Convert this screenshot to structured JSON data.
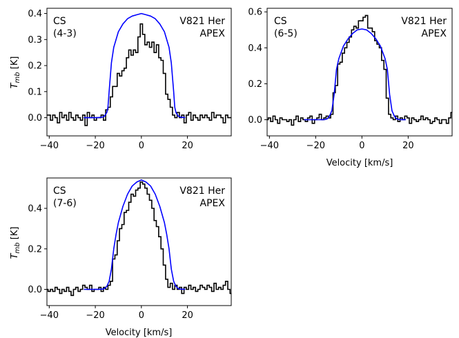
{
  "figure": {
    "xlabel": "Velocity [km/s]",
    "ylabel_main": "T",
    "ylabel_sub": "mb",
    "ylabel_unit": " [K]"
  },
  "colors": {
    "observed": "#000000",
    "model": "#0000ff"
  },
  "chart_data": [
    {
      "type": "line",
      "molecule": "CS",
      "transition": "(4-3)",
      "source": "V821 Her",
      "telescope": "APEX",
      "xlim": [
        -41,
        39
      ],
      "ylim": [
        -0.07,
        0.42
      ],
      "xticks": [
        -40,
        -20,
        0,
        20
      ],
      "yticks": [
        0.0,
        0.1,
        0.2,
        0.3,
        0.4
      ],
      "ytick_labels": [
        "0.0",
        "0.1",
        "0.2",
        "0.3",
        "0.4"
      ],
      "xlabel": "",
      "ylabel": "Tmb [K]",
      "series": [
        {
          "style": "steps",
          "x": [
            -41,
            -40,
            -39,
            -38,
            -37,
            -36,
            -35,
            -34,
            -33,
            -32,
            -31,
            -30,
            -29,
            -28,
            -27,
            -26,
            -25,
            -24,
            -23,
            -22,
            -21,
            -20,
            -19,
            -18,
            -17,
            -16,
            -15,
            -14,
            -13,
            -12,
            -11,
            -10,
            -9,
            -8,
            -7,
            -6,
            -5,
            -4,
            -3,
            -2,
            -1,
            0,
            1,
            2,
            3,
            4,
            5,
            6,
            7,
            8,
            9,
            10,
            11,
            12,
            13,
            14,
            15,
            16,
            17,
            18,
            19,
            20,
            21,
            22,
            23,
            24,
            25,
            26,
            27,
            28,
            29,
            30,
            31,
            32,
            33,
            34,
            35,
            36,
            37,
            38,
            39
          ],
          "y": [
            0.01,
            0.01,
            -0.01,
            0.01,
            0.0,
            -0.02,
            0.02,
            0.0,
            0.01,
            -0.01,
            0.02,
            0.0,
            -0.01,
            0.01,
            0.0,
            -0.01,
            0.01,
            -0.03,
            0.02,
            0.0,
            0.01,
            -0.01,
            0.0,
            0.0,
            0.01,
            -0.01,
            0.03,
            0.04,
            0.08,
            0.12,
            0.12,
            0.17,
            0.16,
            0.18,
            0.19,
            0.23,
            0.26,
            0.24,
            0.26,
            0.25,
            0.31,
            0.36,
            0.32,
            0.28,
            0.29,
            0.27,
            0.29,
            0.25,
            0.28,
            0.23,
            0.22,
            0.17,
            0.09,
            0.07,
            0.04,
            0.01,
            0.0,
            0.02,
            0.0,
            0.01,
            -0.02,
            0.01,
            0.02,
            -0.01,
            0.01,
            0.0,
            -0.01,
            0.01,
            0.0,
            0.01,
            0.0,
            -0.01,
            0.02,
            0.0,
            0.01,
            0.01,
            0.0,
            -0.02,
            0.01,
            0.0,
            0.0
          ]
        },
        {
          "style": "model",
          "x": [
            -25,
            -19,
            -17,
            -16,
            -15,
            -14.5,
            -14,
            -13,
            -12,
            -10,
            -8,
            -6,
            -4,
            -2,
            0,
            2,
            4,
            6,
            8,
            10,
            12,
            13,
            14,
            14.5,
            15,
            16,
            17,
            19
          ],
          "y": [
            0.0,
            0.0,
            0.002,
            0.006,
            0.02,
            0.04,
            0.1,
            0.21,
            0.27,
            0.33,
            0.36,
            0.38,
            0.39,
            0.395,
            0.4,
            0.395,
            0.39,
            0.38,
            0.36,
            0.33,
            0.27,
            0.21,
            0.1,
            0.04,
            0.02,
            0.006,
            0.002,
            0.0
          ]
        }
      ]
    },
    {
      "type": "line",
      "molecule": "CS",
      "transition": "(6-5)",
      "source": "V821 Her",
      "telescope": "APEX",
      "xlim": [
        -41,
        39
      ],
      "ylim": [
        -0.09,
        0.62
      ],
      "xticks": [
        -40,
        -20,
        0,
        20
      ],
      "yticks": [
        0.0,
        0.2,
        0.4,
        0.6
      ],
      "ytick_labels": [
        "0.0",
        "0.2",
        "0.4",
        "0.6"
      ],
      "xlabel": "Velocity [km/s]",
      "ylabel": "",
      "series": [
        {
          "style": "steps",
          "x": [
            -41,
            -40,
            -39,
            -38,
            -37,
            -36,
            -35,
            -34,
            -33,
            -32,
            -31,
            -30,
            -29,
            -28,
            -27,
            -26,
            -25,
            -24,
            -23,
            -22,
            -21,
            -20,
            -19,
            -18,
            -17,
            -16,
            -15,
            -14,
            -13,
            -12,
            -11,
            -10,
            -9,
            -8,
            -7,
            -6,
            -5,
            -4,
            -3,
            -2,
            -1,
            0,
            1,
            2,
            3,
            4,
            5,
            6,
            7,
            8,
            9,
            10,
            11,
            12,
            13,
            14,
            15,
            16,
            17,
            18,
            19,
            20,
            21,
            22,
            23,
            24,
            25,
            26,
            27,
            28,
            29,
            30,
            31,
            32,
            33,
            34,
            35,
            36,
            37,
            38,
            39
          ],
          "y": [
            0.0,
            0.01,
            -0.01,
            0.02,
            0.0,
            -0.02,
            0.01,
            0.0,
            0.0,
            -0.01,
            0.0,
            -0.03,
            0.0,
            0.02,
            -0.01,
            0.01,
            0.0,
            -0.01,
            0.01,
            0.02,
            -0.02,
            0.0,
            0.01,
            0.03,
            0.0,
            0.01,
            0.02,
            0.01,
            0.03,
            0.15,
            0.19,
            0.31,
            0.32,
            0.37,
            0.4,
            0.43,
            0.46,
            0.5,
            0.52,
            0.51,
            0.55,
            0.55,
            0.57,
            0.58,
            0.51,
            0.51,
            0.49,
            0.44,
            0.42,
            0.4,
            0.33,
            0.28,
            0.12,
            0.03,
            0.01,
            0.0,
            0.02,
            -0.01,
            0.01,
            0.0,
            0.02,
            0.01,
            -0.02,
            0.01,
            0.0,
            -0.01,
            0.0,
            0.02,
            0.0,
            0.01,
            0.0,
            -0.02,
            -0.01,
            0.01,
            0.0,
            -0.02,
            0.0,
            0.0,
            -0.02,
            0.01,
            0.04
          ]
        },
        {
          "style": "model",
          "x": [
            -25,
            -19,
            -17,
            -16,
            -15,
            -14,
            -13,
            -12,
            -11,
            -10,
            -8,
            -6,
            -4,
            -2,
            0,
            2,
            4,
            6,
            8,
            10,
            11,
            12,
            13,
            14,
            15,
            16,
            17,
            19
          ],
          "y": [
            0.0,
            0.0,
            0.0,
            0.001,
            0.005,
            0.02,
            0.05,
            0.14,
            0.28,
            0.34,
            0.41,
            0.45,
            0.48,
            0.5,
            0.505,
            0.5,
            0.48,
            0.45,
            0.41,
            0.34,
            0.28,
            0.14,
            0.05,
            0.02,
            0.005,
            0.001,
            0.0,
            0.0
          ]
        }
      ]
    },
    {
      "type": "line",
      "molecule": "CS",
      "transition": "(7-6)",
      "source": "V821 Her",
      "telescope": "APEX",
      "xlim": [
        -41,
        39
      ],
      "ylim": [
        -0.08,
        0.55
      ],
      "xticks": [
        -40,
        -20,
        0,
        20
      ],
      "yticks": [
        0.0,
        0.2,
        0.4
      ],
      "ytick_labels": [
        "0.0",
        "0.2",
        "0.4"
      ],
      "xlabel": "Velocity [km/s]",
      "ylabel": "Tmb [K]",
      "series": [
        {
          "style": "steps",
          "x": [
            -41,
            -40,
            -39,
            -38,
            -37,
            -36,
            -35,
            -34,
            -33,
            -32,
            -31,
            -30,
            -29,
            -28,
            -27,
            -26,
            -25,
            -24,
            -23,
            -22,
            -21,
            -20,
            -19,
            -18,
            -17,
            -16,
            -15,
            -14,
            -13,
            -12,
            -11,
            -10,
            -9,
            -8,
            -7,
            -6,
            -5,
            -4,
            -3,
            -2,
            -1,
            0,
            1,
            2,
            3,
            4,
            5,
            6,
            7,
            8,
            9,
            10,
            11,
            12,
            13,
            14,
            15,
            16,
            17,
            18,
            19,
            20,
            21,
            22,
            23,
            24,
            25,
            26,
            27,
            28,
            29,
            30,
            31,
            32,
            33,
            34,
            35,
            36,
            37,
            38,
            39
          ],
          "y": [
            0.0,
            -0.01,
            0.0,
            -0.01,
            0.01,
            0.0,
            -0.02,
            0.0,
            -0.01,
            0.01,
            -0.01,
            -0.03,
            0.0,
            0.01,
            -0.01,
            0.0,
            0.02,
            0.01,
            0.0,
            0.02,
            -0.01,
            0.0,
            0.0,
            0.01,
            -0.01,
            0.01,
            0.0,
            0.02,
            0.04,
            0.15,
            0.17,
            0.24,
            0.3,
            0.32,
            0.38,
            0.39,
            0.43,
            0.47,
            0.46,
            0.49,
            0.5,
            0.53,
            0.52,
            0.5,
            0.47,
            0.44,
            0.4,
            0.34,
            0.31,
            0.26,
            0.2,
            0.12,
            0.05,
            0.01,
            0.03,
            0.0,
            0.02,
            0.0,
            0.01,
            -0.02,
            0.01,
            0.0,
            0.02,
            0.0,
            0.01,
            -0.01,
            0.0,
            0.02,
            0.01,
            0.0,
            0.02,
            0.01,
            -0.01,
            0.03,
            0.0,
            0.01,
            0.0,
            0.02,
            0.04,
            0.0,
            -0.02
          ]
        },
        {
          "style": "model",
          "x": [
            -25,
            -19,
            -17,
            -16,
            -15,
            -14,
            -13,
            -12,
            -11,
            -10,
            -8,
            -6,
            -4,
            -2,
            0,
            2,
            4,
            6,
            8,
            10,
            11,
            12,
            13,
            14,
            15,
            16,
            17,
            19
          ],
          "y": [
            0.0,
            0.0,
            0.001,
            0.004,
            0.015,
            0.04,
            0.1,
            0.2,
            0.27,
            0.33,
            0.41,
            0.47,
            0.51,
            0.53,
            0.54,
            0.53,
            0.51,
            0.47,
            0.41,
            0.33,
            0.27,
            0.2,
            0.1,
            0.04,
            0.015,
            0.004,
            0.001,
            0.0
          ]
        }
      ]
    }
  ]
}
